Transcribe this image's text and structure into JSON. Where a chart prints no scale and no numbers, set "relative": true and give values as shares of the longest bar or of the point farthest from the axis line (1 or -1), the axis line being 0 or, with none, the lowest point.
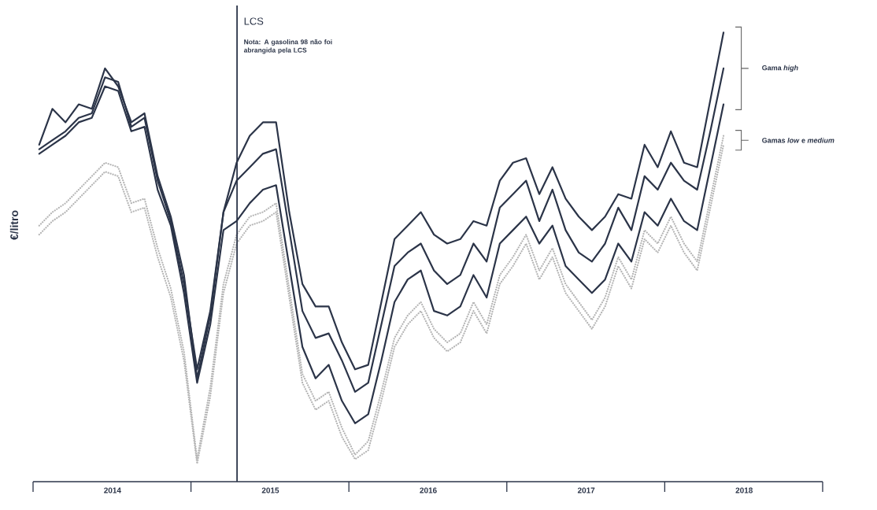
{
  "chart_data": {
    "type": "line",
    "relative": true,
    "ylabel": "€/litro",
    "x": [
      "2014-01-15",
      "2014-02-15",
      "2014-03-15",
      "2014-04-15",
      "2014-05-15",
      "2014-06-15",
      "2014-07-15",
      "2014-08-15",
      "2014-09-15",
      "2014-10-15",
      "2014-11-15",
      "2014-12-15",
      "2015-01-15",
      "2015-02-15",
      "2015-03-15",
      "2015-04-15",
      "2015-05-15",
      "2015-06-15",
      "2015-07-15",
      "2015-08-15",
      "2015-09-15",
      "2015-10-15",
      "2015-11-15",
      "2015-12-15",
      "2016-01-15",
      "2016-02-15",
      "2016-03-15",
      "2016-04-15",
      "2016-05-15",
      "2016-06-15",
      "2016-07-15",
      "2016-08-15",
      "2016-09-15",
      "2016-10-15",
      "2016-11-15",
      "2016-12-15",
      "2017-01-15",
      "2017-02-15",
      "2017-03-15",
      "2017-04-15",
      "2017-05-15",
      "2017-06-15",
      "2017-07-15",
      "2017-08-15",
      "2017-09-15",
      "2017-10-15",
      "2017-11-15",
      "2017-12-15",
      "2018-01-15",
      "2018-02-15",
      "2018-03-15",
      "2018-04-15",
      "2018-05-15"
    ],
    "xlim": [
      "2014-01-01",
      "2019-01-01"
    ],
    "xticks": [
      {
        "value": "2014-01-01",
        "label": null
      },
      {
        "value": "2015-01-01",
        "label": null
      },
      {
        "value": "2016-01-01",
        "label": null
      },
      {
        "value": "2017-01-01",
        "label": null
      },
      {
        "value": "2018-01-01",
        "label": null
      },
      {
        "value": "2019-01-01",
        "label": null
      },
      {
        "value": "2014-07-02",
        "label": "2014"
      },
      {
        "value": "2015-07-02",
        "label": "2015"
      },
      {
        "value": "2016-07-02",
        "label": "2016"
      },
      {
        "value": "2017-07-02",
        "label": "2017"
      },
      {
        "value": "2018-07-02",
        "label": "2018"
      }
    ],
    "series": [
      {
        "color": "#b5b5b5",
        "line_style": "dotted",
        "values": [
          0.57,
          0.6,
          0.62,
          0.65,
          0.68,
          0.71,
          0.7,
          0.62,
          0.63,
          0.52,
          0.43,
          0.29,
          0.05,
          0.21,
          0.44,
          0.55,
          0.59,
          0.6,
          0.62,
          0.43,
          0.24,
          0.18,
          0.2,
          0.12,
          0.06,
          0.09,
          0.2,
          0.32,
          0.37,
          0.4,
          0.34,
          0.31,
          0.33,
          0.4,
          0.35,
          0.46,
          0.5,
          0.55,
          0.47,
          0.52,
          0.44,
          0.4,
          0.36,
          0.41,
          0.5,
          0.45,
          0.56,
          0.53,
          0.59,
          0.53,
          0.49,
          0.63,
          0.77
        ]
      },
      {
        "color": "#b5b5b5",
        "line_style": "dotted",
        "values": [
          0.55,
          0.58,
          0.6,
          0.63,
          0.66,
          0.69,
          0.68,
          0.6,
          0.61,
          0.5,
          0.41,
          0.27,
          0.04,
          0.19,
          0.42,
          0.53,
          0.57,
          0.58,
          0.6,
          0.41,
          0.22,
          0.16,
          0.18,
          0.1,
          0.05,
          0.07,
          0.18,
          0.3,
          0.35,
          0.38,
          0.32,
          0.29,
          0.31,
          0.38,
          0.33,
          0.44,
          0.48,
          0.53,
          0.45,
          0.5,
          0.42,
          0.38,
          0.34,
          0.39,
          0.48,
          0.43,
          0.54,
          0.51,
          0.57,
          0.51,
          0.47,
          0.61,
          0.75
        ]
      },
      {
        "color": "#2b3448",
        "line_style": "solid",
        "values": [
          0.73,
          0.75,
          0.77,
          0.8,
          0.81,
          0.88,
          0.87,
          0.78,
          0.79,
          0.65,
          0.57,
          0.42,
          0.22,
          0.35,
          0.56,
          0.58,
          0.62,
          0.65,
          0.66,
          0.48,
          0.3,
          0.23,
          0.26,
          0.18,
          0.13,
          0.15,
          0.27,
          0.4,
          0.45,
          0.47,
          0.38,
          0.37,
          0.39,
          0.46,
          0.41,
          0.53,
          0.56,
          0.59,
          0.53,
          0.57,
          0.48,
          0.45,
          0.42,
          0.45,
          0.53,
          0.49,
          0.6,
          0.57,
          0.63,
          0.58,
          0.56,
          0.7,
          0.84
        ]
      },
      {
        "color": "#2b3448",
        "line_style": "solid",
        "values": [
          0.74,
          0.76,
          0.78,
          0.81,
          0.82,
          0.9,
          0.89,
          0.79,
          0.81,
          0.67,
          0.58,
          0.44,
          0.25,
          0.38,
          0.6,
          0.67,
          0.7,
          0.73,
          0.74,
          0.56,
          0.38,
          0.32,
          0.33,
          0.27,
          0.2,
          0.22,
          0.35,
          0.48,
          0.51,
          0.53,
          0.47,
          0.44,
          0.46,
          0.53,
          0.49,
          0.61,
          0.64,
          0.67,
          0.58,
          0.65,
          0.56,
          0.51,
          0.49,
          0.53,
          0.61,
          0.56,
          0.68,
          0.65,
          0.71,
          0.67,
          0.65,
          0.78,
          0.92
        ]
      },
      {
        "color": "#2b3448",
        "line_style": "solid",
        "values": [
          0.75,
          0.83,
          0.8,
          0.84,
          0.83,
          0.92,
          0.88,
          0.8,
          0.82,
          0.68,
          0.59,
          0.46,
          0.23,
          0.37,
          0.6,
          0.71,
          0.77,
          0.8,
          0.8,
          0.6,
          0.44,
          0.39,
          0.39,
          0.31,
          0.25,
          0.26,
          0.4,
          0.54,
          0.57,
          0.6,
          0.55,
          0.53,
          0.54,
          0.58,
          0.57,
          0.67,
          0.71,
          0.72,
          0.64,
          0.7,
          0.63,
          0.59,
          0.56,
          0.59,
          0.64,
          0.63,
          0.75,
          0.7,
          0.78,
          0.71,
          0.7,
          0.85,
          1.0
        ]
      }
    ],
    "ref_lines": [
      {
        "axis": "x",
        "value": "2015-04-16",
        "label": "LCS",
        "color": "#2b3448"
      }
    ],
    "annotations": [
      "Nota: A gasolina 98 não foi abrangida pela LCS",
      "Gama *high*",
      "Gamas *low* e *medium*"
    ]
  }
}
